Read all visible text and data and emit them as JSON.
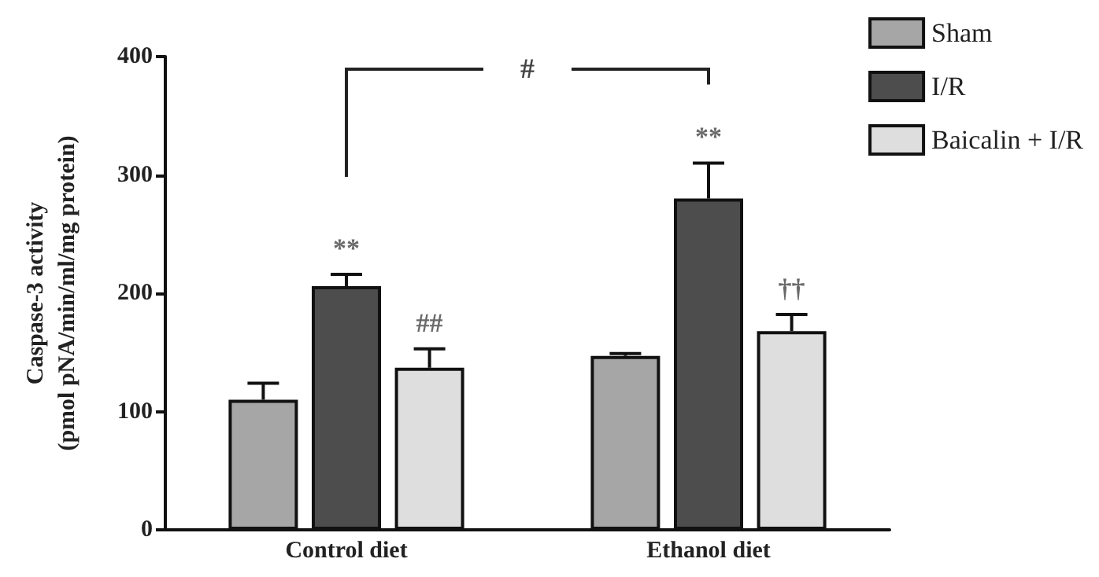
{
  "chart_data": {
    "type": "bar",
    "ylabel": "Caspase-3 activity\n(pmol pNA/min/ml/mg protein)",
    "categories": [
      "Control diet",
      "Ethanol diet"
    ],
    "series": [
      {
        "name": "Sham",
        "color": "#a6a6a6",
        "values": [
          110,
          147
        ],
        "errors": [
          14,
          2
        ]
      },
      {
        "name": "I/R",
        "color": "#4d4d4d",
        "values": [
          206,
          280
        ],
        "errors": [
          10,
          30
        ],
        "value_labels": [
          "**",
          "**"
        ]
      },
      {
        "name": "Baicalin + I/R",
        "color": "#dedede",
        "values": [
          137,
          168
        ],
        "errors": [
          16,
          14
        ],
        "value_labels": [
          "##",
          "††"
        ]
      }
    ],
    "ylim": [
      0,
      400
    ],
    "yticks": [
      0,
      100,
      200,
      300,
      400
    ],
    "grid": false,
    "legend": "top right",
    "annotations": [
      "#"
    ]
  }
}
